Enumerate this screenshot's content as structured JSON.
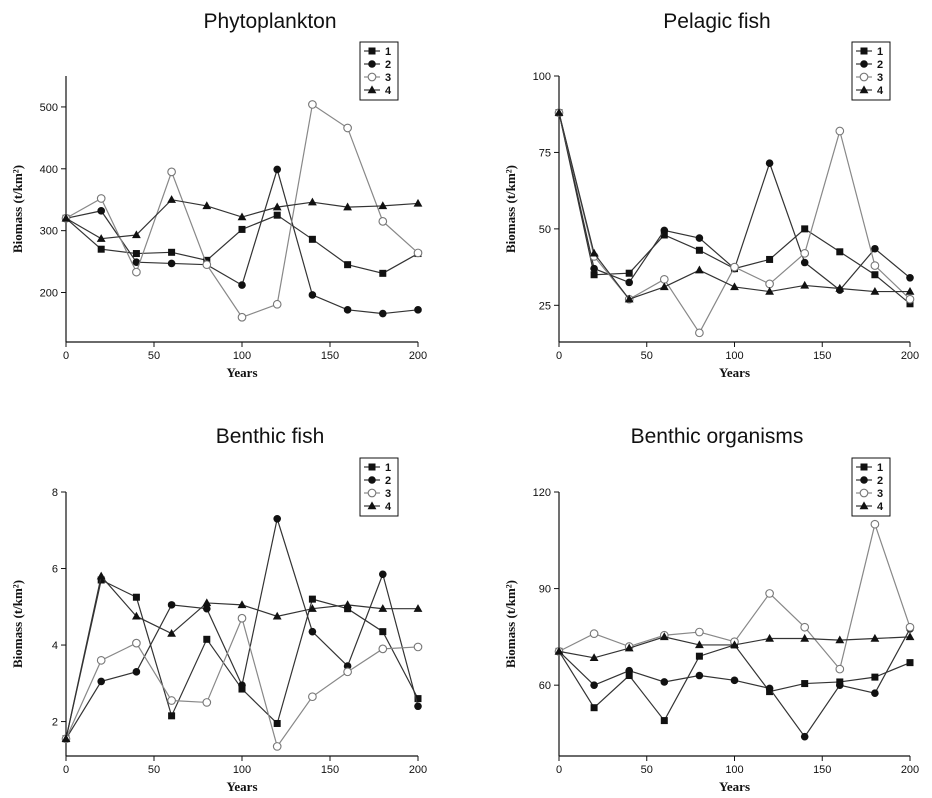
{
  "chart_data": [
    {
      "type": "line",
      "title": "Phytoplankton",
      "xlabel": "Years",
      "ylabel": "Biomass (t/km²)",
      "xlim": [
        0,
        200
      ],
      "ylim": [
        120,
        550
      ],
      "xticks": [
        "0",
        "50",
        "100",
        "150",
        "200"
      ],
      "xtick_values": [
        0,
        50,
        100,
        150,
        200
      ],
      "yticks": [
        "200",
        "300",
        "400",
        "500"
      ],
      "ytick_values": [
        200,
        300,
        400,
        500
      ],
      "legend_position": "top-right",
      "x": [
        0,
        20,
        40,
        60,
        80,
        100,
        120,
        140,
        160,
        180,
        200
      ],
      "series": [
        {
          "name": "1",
          "marker": "filled-square",
          "values": [
            320,
            270,
            263,
            265,
            252,
            302,
            325,
            286,
            245,
            231,
            263
          ]
        },
        {
          "name": "2",
          "marker": "filled-circle",
          "values": [
            320,
            332,
            249,
            247,
            245,
            212,
            399,
            196,
            172,
            166,
            172
          ]
        },
        {
          "name": "3",
          "marker": "open-circle",
          "values": [
            320,
            352,
            233,
            395,
            245,
            160,
            181,
            504,
            466,
            315,
            264
          ]
        },
        {
          "name": "4",
          "marker": "filled-triangle",
          "values": [
            320,
            287,
            293,
            350,
            340,
            322,
            338,
            346,
            338,
            340,
            344
          ]
        }
      ]
    },
    {
      "type": "line",
      "title": "Pelagic fish",
      "xlabel": "Years",
      "ylabel": "Biomass (t/km²)",
      "xlim": [
        0,
        200
      ],
      "ylim": [
        13,
        100
      ],
      "xticks": [
        "0",
        "50",
        "100",
        "150",
        "200"
      ],
      "xtick_values": [
        0,
        50,
        100,
        150,
        200
      ],
      "yticks": [
        "25",
        "50",
        "75",
        "100"
      ],
      "ytick_values": [
        25,
        50,
        75,
        100
      ],
      "legend_position": "top-right",
      "x": [
        0,
        20,
        40,
        60,
        80,
        100,
        120,
        140,
        160,
        180,
        200
      ],
      "series": [
        {
          "name": "1",
          "marker": "filled-square",
          "values": [
            88,
            35,
            35.5,
            48,
            43,
            37,
            40,
            50,
            42.5,
            35,
            25.5
          ]
        },
        {
          "name": "2",
          "marker": "filled-circle",
          "values": [
            88,
            37,
            32.5,
            49.5,
            47,
            37,
            71.5,
            39,
            30,
            43.5,
            34
          ]
        },
        {
          "name": "3",
          "marker": "open-circle",
          "values": [
            88,
            41,
            27,
            33.5,
            16,
            37.5,
            32,
            42,
            82,
            38,
            27
          ]
        },
        {
          "name": "4",
          "marker": "filled-triangle",
          "values": [
            88,
            42,
            27,
            31,
            36.5,
            31,
            29.5,
            31.5,
            30.5,
            29.5,
            29.5
          ]
        }
      ]
    },
    {
      "type": "line",
      "title": "Benthic fish",
      "xlabel": "Years",
      "ylabel": "Biomass (t/km²)",
      "xlim": [
        0,
        200
      ],
      "ylim": [
        1.1,
        8
      ],
      "xticks": [
        "0",
        "50",
        "100",
        "150",
        "200"
      ],
      "xtick_values": [
        0,
        50,
        100,
        150,
        200
      ],
      "yticks": [
        "2",
        "4",
        "6",
        "8"
      ],
      "ytick_values": [
        2,
        4,
        6,
        8
      ],
      "legend_position": "top-right",
      "x": [
        0,
        20,
        40,
        60,
        80,
        100,
        120,
        140,
        160,
        180,
        200
      ],
      "series": [
        {
          "name": "1",
          "marker": "filled-square",
          "values": [
            1.55,
            5.7,
            5.25,
            2.15,
            4.15,
            2.85,
            1.95,
            5.2,
            4.95,
            4.35,
            2.6
          ]
        },
        {
          "name": "2",
          "marker": "filled-circle",
          "values": [
            1.55,
            3.05,
            3.3,
            5.05,
            4.95,
            2.95,
            7.3,
            4.35,
            3.45,
            5.85,
            2.4
          ]
        },
        {
          "name": "3",
          "marker": "open-circle",
          "values": [
            1.55,
            3.6,
            4.05,
            2.55,
            2.5,
            4.7,
            1.35,
            2.65,
            3.3,
            3.9,
            3.95
          ]
        },
        {
          "name": "4",
          "marker": "filled-triangle",
          "values": [
            1.55,
            5.8,
            4.75,
            4.3,
            5.1,
            5.05,
            4.75,
            4.95,
            5.05,
            4.95,
            4.95
          ]
        }
      ]
    },
    {
      "type": "line",
      "title": "Benthic organisms",
      "xlabel": "Years",
      "ylabel": "Biomass (t/km²)",
      "xlim": [
        0,
        200
      ],
      "ylim": [
        38,
        120
      ],
      "xticks": [
        "0",
        "50",
        "100",
        "150",
        "200"
      ],
      "xtick_values": [
        0,
        50,
        100,
        150,
        200
      ],
      "yticks": [
        "60",
        "90",
        "120"
      ],
      "ytick_values": [
        60,
        90,
        120
      ],
      "legend_position": "top-right",
      "x": [
        0,
        20,
        40,
        60,
        80,
        100,
        120,
        140,
        160,
        180,
        200
      ],
      "series": [
        {
          "name": "1",
          "marker": "filled-square",
          "values": [
            70.5,
            53,
            63,
            49,
            69,
            72.5,
            58,
            60.5,
            61,
            62.5,
            67
          ]
        },
        {
          "name": "2",
          "marker": "filled-circle",
          "values": [
            70.5,
            60,
            64.5,
            61,
            63,
            61.5,
            59,
            44,
            60,
            57.5,
            77.5
          ]
        },
        {
          "name": "3",
          "marker": "open-circle",
          "values": [
            70.5,
            76,
            72,
            75.5,
            76.5,
            73.5,
            88.5,
            78,
            65,
            110,
            78
          ]
        },
        {
          "name": "4",
          "marker": "filled-triangle",
          "values": [
            70.5,
            68.5,
            71.5,
            75,
            72.5,
            72.5,
            74.5,
            74.5,
            74,
            74.5,
            75
          ]
        }
      ]
    }
  ]
}
